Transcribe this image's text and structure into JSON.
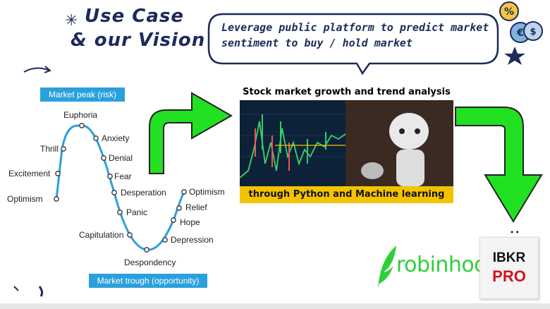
{
  "title": {
    "line1": "Use Case",
    "line2": "& our Vision"
  },
  "speech_bubble": {
    "line1": "Leverage public platform to predict market",
    "line2": "sentiment to buy / hold market"
  },
  "cycle_chart": {
    "peak_label": "Market peak (risk)",
    "trough_label": "Market trough (opportunity)",
    "stages": [
      "Optimism",
      "Excitement",
      "Thrill",
      "Euphoria",
      "Anxiety",
      "Denial",
      "Fear",
      "Desperation",
      "Panic",
      "Capitulation",
      "Despondency",
      "Depression",
      "Hope",
      "Relief",
      "Optimism"
    ]
  },
  "stock_image": {
    "top_caption": "Stock market growth and trend analysis",
    "bottom_caption": "through Python and Machine learning"
  },
  "brands": {
    "robinhood": "robinhood",
    "ibkr_line1": "IBKR",
    "ibkr_line2": "PRO"
  },
  "colors": {
    "title": "#1d2a5a",
    "curve": "#2aa0dc",
    "arrow": "#22e022",
    "robinhood": "#2fcf3a",
    "ibkr_red": "#d0141c",
    "caption_bg": "#f2c300"
  }
}
